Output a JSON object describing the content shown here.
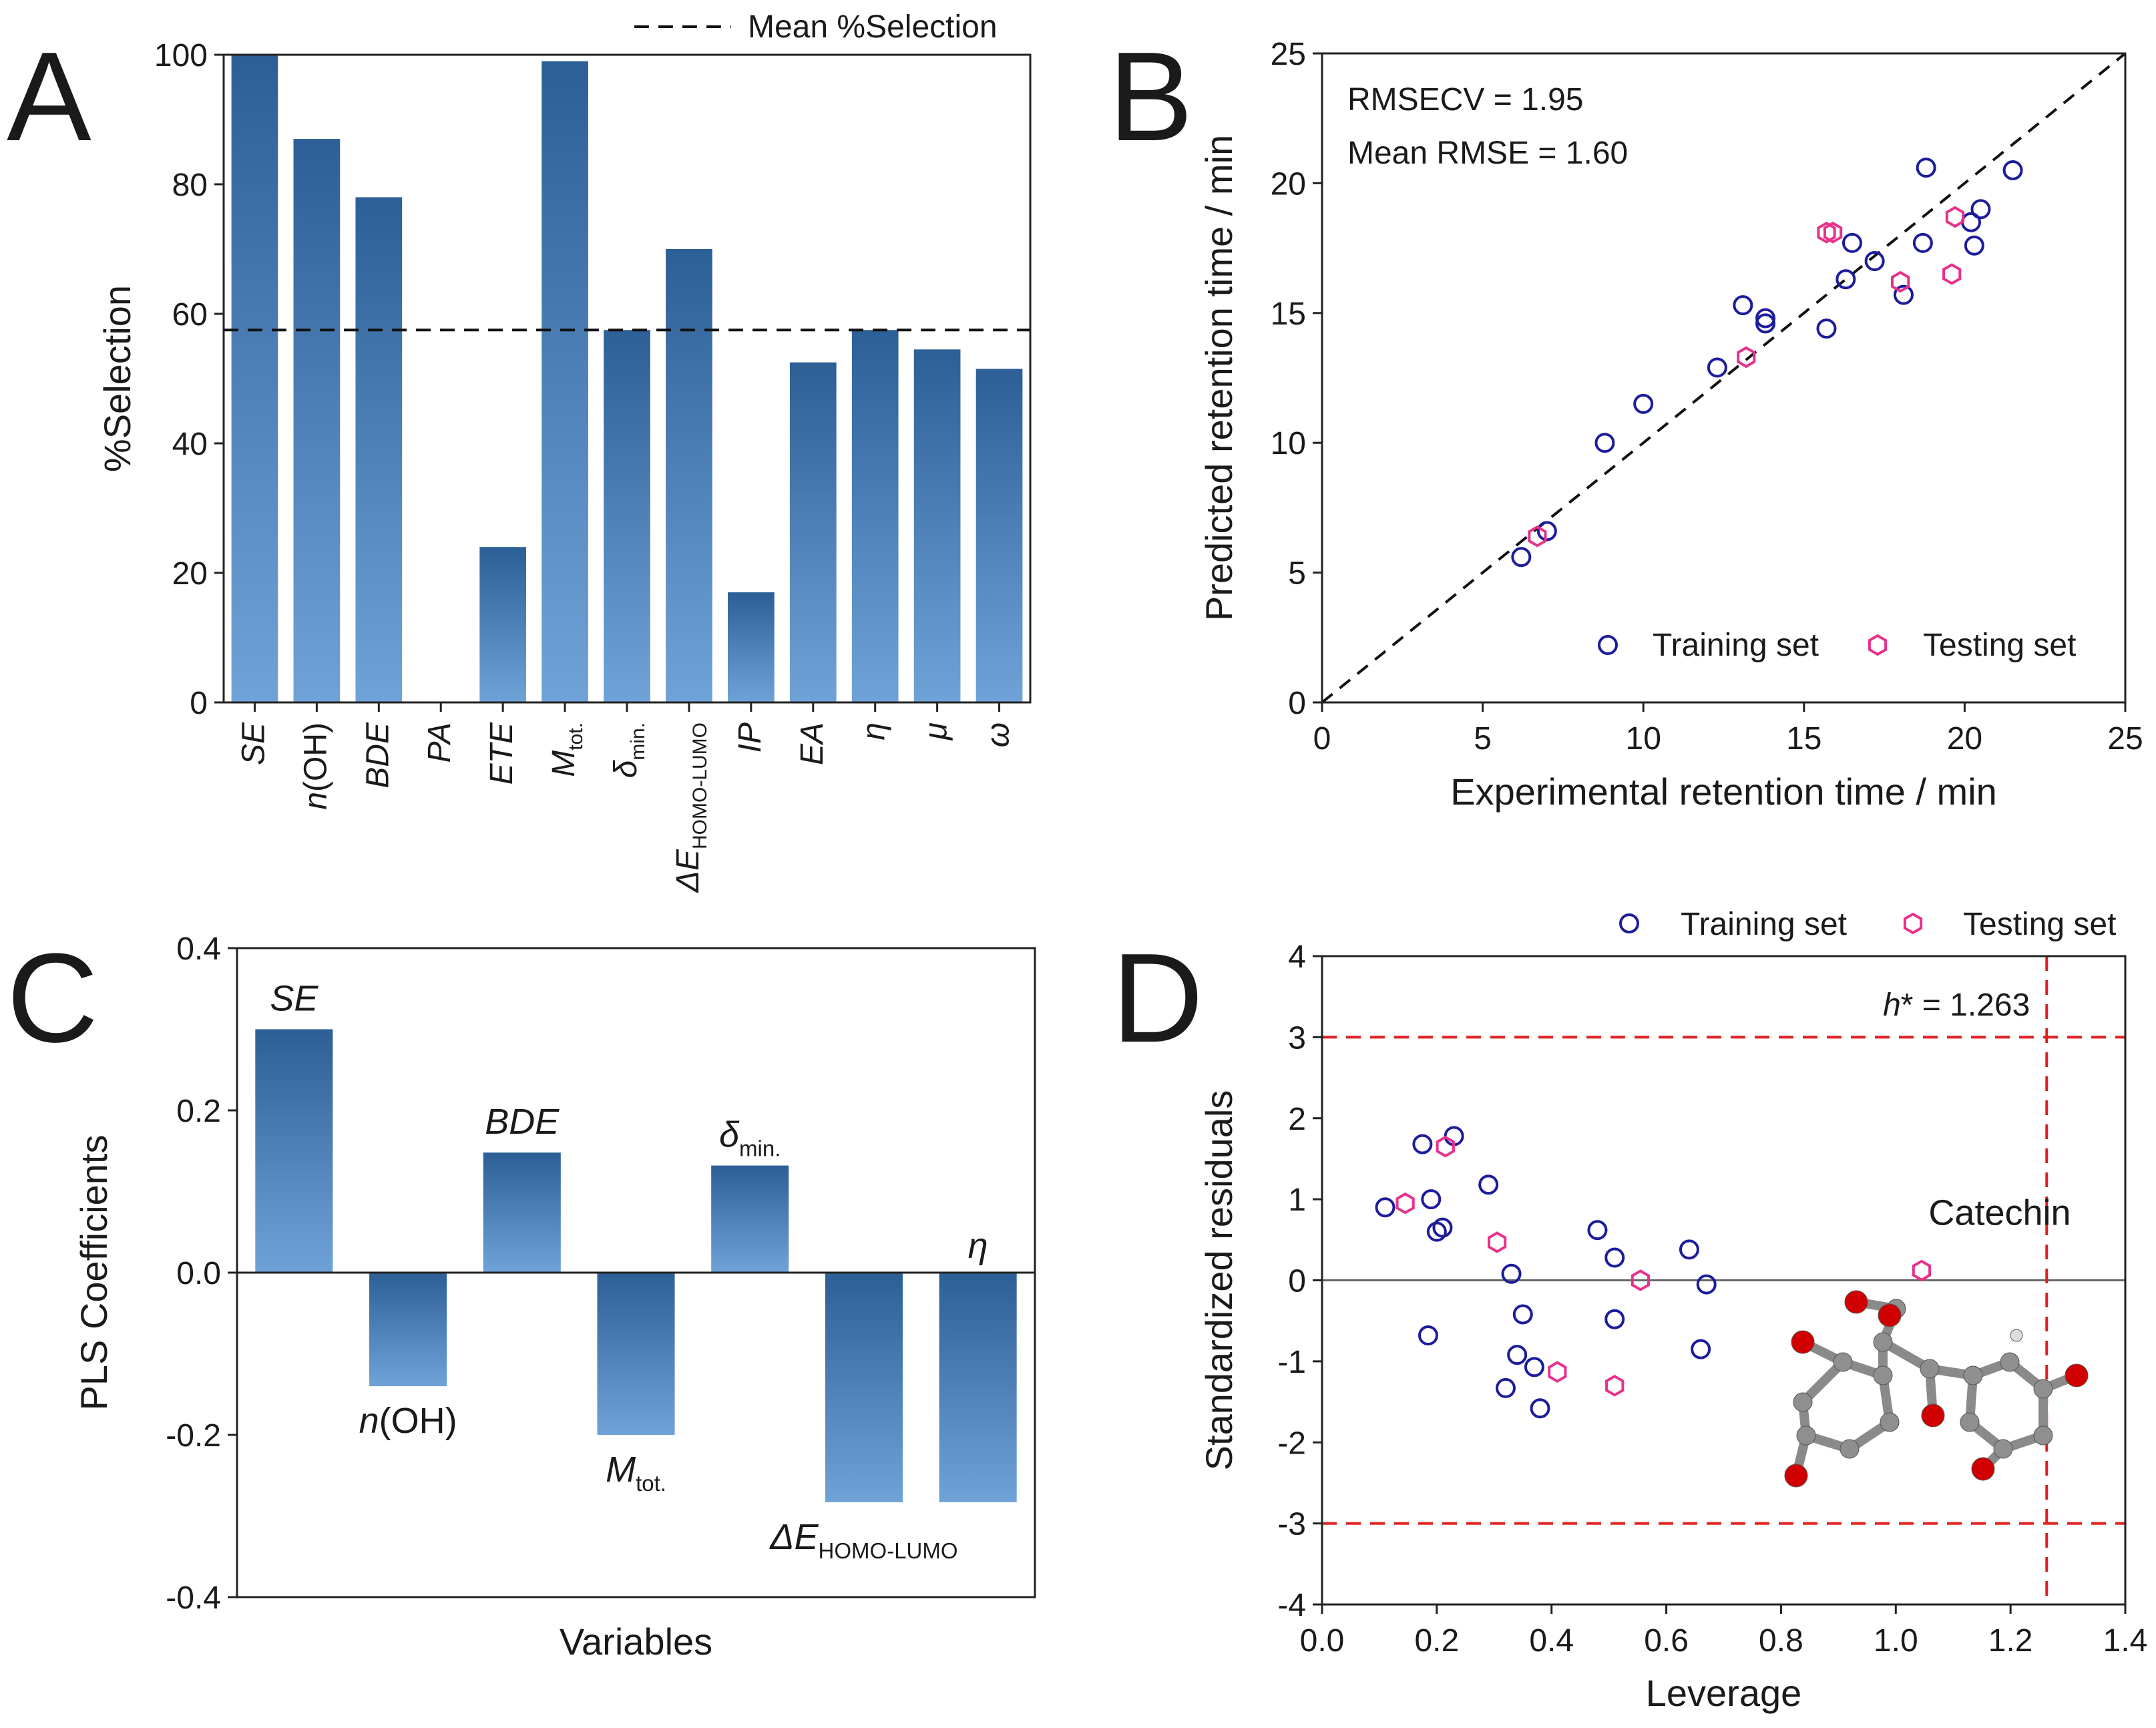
{
  "chart_data": [
    {
      "panel": "A",
      "type": "bar",
      "ylabel": "%Selection",
      "ylim": [
        0,
        100
      ],
      "yticks": [
        "0",
        "20",
        "40",
        "60",
        "80",
        "100"
      ],
      "categories": [
        {
          "main": "SE",
          "sub": ""
        },
        {
          "main": "n(OH)",
          "sub": ""
        },
        {
          "main": "BDE",
          "sub": ""
        },
        {
          "main": "PA",
          "sub": ""
        },
        {
          "main": "ETE",
          "sub": ""
        },
        {
          "main": "M",
          "sub": "tot."
        },
        {
          "main": "δ",
          "sub": "min."
        },
        {
          "main": "ΔE",
          "sub": "HOMO-LUMO"
        },
        {
          "main": "IP",
          "sub": ""
        },
        {
          "main": "EA",
          "sub": ""
        },
        {
          "main": "η",
          "sub": ""
        },
        {
          "main": "μ",
          "sub": ""
        },
        {
          "main": "ω",
          "sub": ""
        }
      ],
      "values": [
        100,
        87,
        78,
        0,
        24,
        99,
        57.5,
        70,
        17,
        52.5,
        57.5,
        54.5,
        51.5
      ],
      "mean_line": 57.5,
      "legend": "Mean %Selection"
    },
    {
      "panel": "B",
      "type": "scatter",
      "xlabel": "Experimental retention time / min",
      "ylabel": "Predicted retention time / min",
      "xlim": [
        0,
        25
      ],
      "ylim": [
        0,
        25
      ],
      "xticks": [
        "0",
        "5",
        "10",
        "15",
        "20",
        "25"
      ],
      "yticks": [
        "0",
        "5",
        "10",
        "15",
        "20",
        "25"
      ],
      "annotations": [
        "RMSECV = 1.95",
        "Mean RMSE = 1.60"
      ],
      "series": [
        {
          "name": "Training set",
          "color": "#1c1c9c",
          "marker": "circle",
          "x": [
            6.2,
            7.0,
            8.8,
            10.0,
            12.3,
            13.1,
            13.8,
            13.8,
            15.7,
            16.3,
            16.5,
            17.2,
            18.1,
            18.7,
            18.8,
            20.2,
            20.3,
            20.5,
            21.5
          ],
          "y": [
            5.6,
            6.6,
            10.0,
            11.5,
            12.9,
            15.3,
            14.6,
            14.8,
            14.4,
            16.3,
            17.7,
            17.0,
            15.7,
            17.7,
            20.6,
            18.5,
            17.6,
            19.0,
            20.5
          ]
        },
        {
          "name": "Testing set",
          "color": "#e8318a",
          "marker": "hexagon",
          "x": [
            6.7,
            13.2,
            15.7,
            15.9,
            18.0,
            19.6,
            19.7
          ],
          "y": [
            6.4,
            13.3,
            18.1,
            18.1,
            16.2,
            16.5,
            18.7
          ]
        }
      ]
    },
    {
      "panel": "C",
      "type": "bar",
      "xlabel": "Variables",
      "ylabel": "PLS Coefficients",
      "ylim": [
        -0.4,
        0.4
      ],
      "yticks": [
        "-0.4",
        "-0.2",
        "0.0",
        "0.2",
        "0.4"
      ],
      "categories": [
        {
          "main": "SE",
          "sub": ""
        },
        {
          "main": "n(OH)",
          "sub": ""
        },
        {
          "main": "BDE",
          "sub": ""
        },
        {
          "main": "M",
          "sub": "tot."
        },
        {
          "main": "δ",
          "sub": "min."
        },
        {
          "main": "ΔE",
          "sub": "HOMO-LUMO"
        },
        {
          "main": "η",
          "sub": ""
        }
      ],
      "values": [
        0.3,
        -0.14,
        0.148,
        -0.2,
        0.132,
        -0.283,
        -0.283
      ]
    },
    {
      "panel": "D",
      "type": "scatter",
      "xlabel": "Leverage",
      "ylabel": "Standardized residuals",
      "xlim": [
        0,
        1.4
      ],
      "ylim": [
        -4,
        4
      ],
      "xticks": [
        "0.0",
        "0.2",
        "0.4",
        "0.6",
        "0.8",
        "1.0",
        "1.2",
        "1.4"
      ],
      "yticks": [
        "-4",
        "-3",
        "-2",
        "-1",
        "0",
        "1",
        "2",
        "3",
        "4"
      ],
      "h_star": 1.263,
      "h_star_label": "h* = 1.263",
      "residual_limits": [
        3,
        -3
      ],
      "annotation": "Catechin",
      "series": [
        {
          "name": "Training set",
          "color": "#1c1c9c",
          "marker": "circle",
          "x": [
            0.11,
            0.175,
            0.185,
            0.19,
            0.2,
            0.21,
            0.23,
            0.29,
            0.33,
            0.34,
            0.35,
            0.32,
            0.37,
            0.38,
            0.48,
            0.51,
            0.51,
            0.64,
            0.66,
            0.67
          ],
          "y": [
            0.9,
            1.68,
            -0.68,
            1.0,
            0.6,
            0.65,
            1.78,
            1.18,
            0.08,
            -0.92,
            -0.42,
            -1.33,
            -1.07,
            -1.58,
            0.62,
            0.28,
            -0.48,
            0.38,
            -0.85,
            -0.05
          ]
        },
        {
          "name": "Testing set",
          "color": "#e8318a",
          "marker": "hexagon",
          "x": [
            0.145,
            0.215,
            0.305,
            0.41,
            0.51,
            0.555,
            1.045
          ],
          "y": [
            0.95,
            1.65,
            0.47,
            -1.13,
            -1.3,
            0.0,
            0.12
          ]
        }
      ]
    }
  ]
}
